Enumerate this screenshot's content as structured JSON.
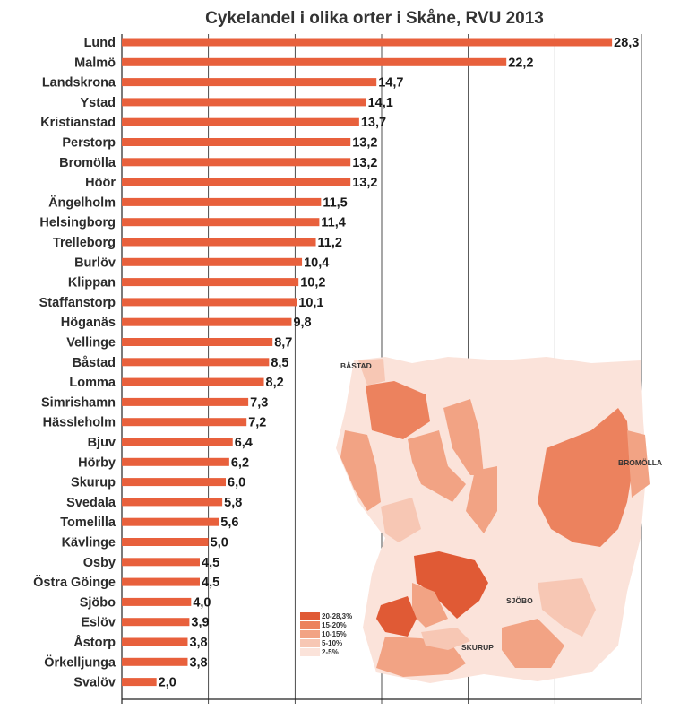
{
  "chart_data": {
    "type": "bar",
    "orientation": "horizontal",
    "title": "Cykelandel i olika orter i Skåne, RVU 2013",
    "categories": [
      "Lund",
      "Malmö",
      "Landskrona",
      "Ystad",
      "Kristianstad",
      "Perstorp",
      "Bromölla",
      "Höör",
      "Ängelholm",
      "Helsingborg",
      "Trelleborg",
      "Burlöv",
      "Klippan",
      "Staffanstorp",
      "Höganäs",
      "Vellinge",
      "Båstad",
      "Lomma",
      "Simrishamn",
      "Hässleholm",
      "Bjuv",
      "Hörby",
      "Skurup",
      "Svedala",
      "Tomelilla",
      "Kävlinge",
      "Osby",
      "Östra Göinge",
      "Sjöbo",
      "Eslöv",
      "Åstorp",
      "Örkelljunga",
      "Svalöv"
    ],
    "values": [
      28.3,
      22.2,
      14.7,
      14.1,
      13.7,
      13.2,
      13.2,
      13.2,
      11.5,
      11.4,
      11.2,
      10.4,
      10.2,
      10.1,
      9.8,
      8.7,
      8.5,
      8.2,
      7.3,
      7.2,
      6.4,
      6.2,
      6.0,
      5.8,
      5.6,
      5.0,
      4.5,
      4.5,
      4.0,
      3.9,
      3.8,
      3.8,
      2.0
    ],
    "value_labels": [
      "28,3",
      "22,2",
      "14,7",
      "14,1",
      "13,7",
      "13,2",
      "13,2",
      "13,2",
      "11,5",
      "11,4",
      "11,2",
      "10,4",
      "10,2",
      "10,1",
      "9,8",
      "8,7",
      "8,5",
      "8,2",
      "7,3",
      "7,2",
      "6,4",
      "6,2",
      "6,0",
      "5,8",
      "5,6",
      "5,0",
      "4,5",
      "4,5",
      "4,0",
      "3,9",
      "3,8",
      "3,8",
      "2,0"
    ],
    "xlim": [
      0,
      30
    ],
    "grid": "vertical",
    "bar_color": "#e8603c"
  },
  "map": {
    "labels": [
      "BÅSTAD",
      "BROMÖLLA",
      "SJÖBO",
      "SKURUP"
    ],
    "legend": [
      {
        "label": "20-28,3%",
        "color": "#e05a35"
      },
      {
        "label": "15-20%",
        "color": "#ec825e"
      },
      {
        "label": "10-15%",
        "color": "#f2a384"
      },
      {
        "label": "5-10%",
        "color": "#f7c7b4"
      },
      {
        "label": "2-5%",
        "color": "#fbe3da"
      }
    ]
  }
}
